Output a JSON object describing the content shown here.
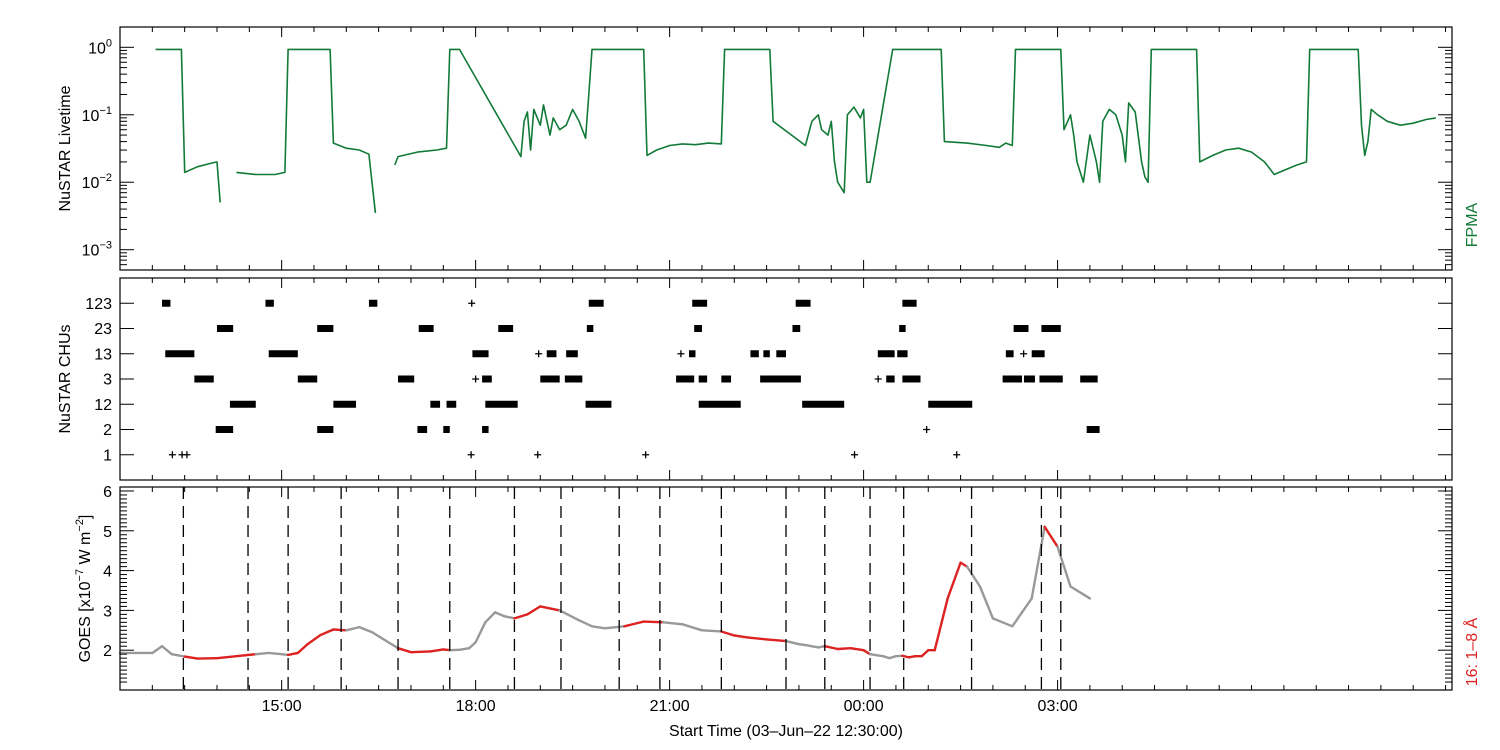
{
  "chart_data": [
    {
      "type": "line",
      "panel": "livetime",
      "ylabel": "NuSTAR Livetime",
      "yscale": "log",
      "ylim": [
        0.0005,
        2.0
      ],
      "y_ticks": [
        {
          "value": 1,
          "label": "10",
          "exp": "0"
        },
        {
          "value": 0.1,
          "label": "10",
          "exp": "−1"
        },
        {
          "value": 0.01,
          "label": "10",
          "exp": "−2"
        },
        {
          "value": 0.001,
          "label": "10",
          "exp": "−3"
        }
      ],
      "right_label": "FPMA",
      "color": "#127a37",
      "segments": [
        [
          [
            13.05,
            0.93
          ],
          [
            13.45,
            0.93
          ],
          [
            13.5,
            0.014
          ],
          [
            13.7,
            0.017
          ],
          [
            13.9,
            0.019
          ],
          [
            14.0,
            0.02
          ],
          [
            14.05,
            0.005
          ]
        ],
        [
          [
            14.3,
            0.014
          ],
          [
            14.6,
            0.013
          ],
          [
            14.9,
            0.013
          ],
          [
            15.05,
            0.014
          ],
          [
            15.1,
            0.93
          ],
          [
            15.75,
            0.93
          ],
          [
            15.8,
            0.038
          ],
          [
            16.0,
            0.032
          ],
          [
            16.2,
            0.03
          ],
          [
            16.35,
            0.026
          ],
          [
            16.45,
            0.0035
          ]
        ],
        [
          [
            16.75,
            0.018
          ],
          [
            16.8,
            0.024
          ],
          [
            17.1,
            0.028
          ],
          [
            17.4,
            0.03
          ],
          [
            17.55,
            0.032
          ],
          [
            17.6,
            0.93
          ],
          [
            17.75,
            0.93
          ],
          [
            18.7,
            0.024
          ],
          [
            18.75,
            0.08
          ],
          [
            18.8,
            0.11
          ],
          [
            18.85,
            0.03
          ],
          [
            18.9,
            0.12
          ],
          [
            19.0,
            0.07
          ],
          [
            19.05,
            0.14
          ],
          [
            19.15,
            0.05
          ],
          [
            19.2,
            0.09
          ],
          [
            19.3,
            0.06
          ],
          [
            19.4,
            0.07
          ],
          [
            19.5,
            0.12
          ],
          [
            19.6,
            0.08
          ],
          [
            19.7,
            0.045
          ],
          [
            19.75,
            0.2
          ],
          [
            19.8,
            0.93
          ],
          [
            20.6,
            0.93
          ],
          [
            20.65,
            0.025
          ],
          [
            20.8,
            0.03
          ],
          [
            21.0,
            0.035
          ],
          [
            21.2,
            0.037
          ],
          [
            21.4,
            0.036
          ],
          [
            21.6,
            0.038
          ],
          [
            21.8,
            0.037
          ],
          [
            21.85,
            0.93
          ],
          [
            22.55,
            0.93
          ],
          [
            22.6,
            0.08
          ],
          [
            23.1,
            0.035
          ],
          [
            23.2,
            0.08
          ],
          [
            23.3,
            0.1
          ],
          [
            23.35,
            0.06
          ],
          [
            23.45,
            0.05
          ],
          [
            23.5,
            0.08
          ],
          [
            23.55,
            0.02
          ],
          [
            23.6,
            0.01
          ],
          [
            23.7,
            0.007
          ],
          [
            23.75,
            0.1
          ],
          [
            23.85,
            0.13
          ],
          [
            23.95,
            0.09
          ],
          [
            24.0,
            0.12
          ],
          [
            24.05,
            0.01
          ],
          [
            24.1,
            0.01
          ],
          [
            24.45,
            0.93
          ],
          [
            25.2,
            0.93
          ],
          [
            25.25,
            0.04
          ],
          [
            25.6,
            0.038
          ],
          [
            25.9,
            0.035
          ],
          [
            26.1,
            0.033
          ],
          [
            26.2,
            0.038
          ],
          [
            26.3,
            0.035
          ],
          [
            26.35,
            0.93
          ],
          [
            27.05,
            0.93
          ],
          [
            27.1,
            0.06
          ],
          [
            27.2,
            0.1
          ],
          [
            27.25,
            0.05
          ],
          [
            27.3,
            0.02
          ],
          [
            27.4,
            0.01
          ],
          [
            27.5,
            0.05
          ],
          [
            27.6,
            0.02
          ],
          [
            27.65,
            0.01
          ],
          [
            27.7,
            0.08
          ],
          [
            27.8,
            0.12
          ],
          [
            27.9,
            0.1
          ],
          [
            28.0,
            0.05
          ],
          [
            28.05,
            0.02
          ],
          [
            28.1,
            0.15
          ],
          [
            28.2,
            0.11
          ],
          [
            28.3,
            0.02
          ],
          [
            28.35,
            0.012
          ],
          [
            28.4,
            0.01
          ],
          [
            28.45,
            0.93
          ],
          [
            29.15,
            0.93
          ],
          [
            29.2,
            0.02
          ],
          [
            29.4,
            0.025
          ],
          [
            29.6,
            0.03
          ],
          [
            29.8,
            0.032
          ],
          [
            30.0,
            0.028
          ],
          [
            30.2,
            0.02
          ],
          [
            30.35,
            0.013
          ],
          [
            30.5,
            0.015
          ],
          [
            30.7,
            0.018
          ],
          [
            30.85,
            0.02
          ],
          [
            30.9,
            0.93
          ],
          [
            31.65,
            0.93
          ],
          [
            31.7,
            0.07
          ],
          [
            31.75,
            0.025
          ],
          [
            31.8,
            0.04
          ],
          [
            31.85,
            0.12
          ],
          [
            31.95,
            0.1
          ],
          [
            32.1,
            0.08
          ],
          [
            32.3,
            0.07
          ],
          [
            32.5,
            0.075
          ],
          [
            32.7,
            0.085
          ],
          [
            32.85,
            0.09
          ]
        ]
      ]
    },
    {
      "type": "scatter",
      "panel": "chus",
      "ylabel": "NuSTAR CHUs",
      "categories": [
        "1",
        "2",
        "12",
        "3",
        "13",
        "23",
        "123"
      ],
      "intervals": {
        "123": [
          [
            13.15,
            13.28
          ],
          [
            14.75,
            14.88
          ],
          [
            16.35,
            16.48
          ],
          [
            17.92,
            17.96
          ],
          [
            19.75,
            19.98
          ],
          [
            21.35,
            21.58
          ],
          [
            22.95,
            23.18
          ],
          [
            24.6,
            24.82
          ]
        ],
        "23": [
          [
            14.0,
            14.25
          ],
          [
            15.55,
            15.8
          ],
          [
            17.12,
            17.35
          ],
          [
            18.35,
            18.58
          ],
          [
            19.72,
            19.82
          ],
          [
            21.38,
            21.5
          ],
          [
            22.9,
            23.02
          ],
          [
            24.55,
            24.65
          ],
          [
            26.32,
            26.55
          ],
          [
            26.75,
            27.05
          ]
        ],
        "13": [
          [
            13.2,
            13.65
          ],
          [
            14.8,
            15.25
          ],
          [
            17.95,
            18.2
          ],
          [
            18.95,
            19.0
          ],
          [
            19.1,
            19.25
          ],
          [
            19.4,
            19.58
          ],
          [
            21.15,
            21.2
          ],
          [
            21.3,
            21.4
          ],
          [
            22.25,
            22.38
          ],
          [
            22.45,
            22.55
          ],
          [
            22.65,
            22.8
          ],
          [
            24.22,
            24.48
          ],
          [
            24.52,
            24.68
          ],
          [
            26.2,
            26.32
          ],
          [
            26.45,
            26.5
          ],
          [
            26.6,
            26.8
          ]
        ],
        "3": [
          [
            13.65,
            13.95
          ],
          [
            15.25,
            15.55
          ],
          [
            16.8,
            17.05
          ],
          [
            17.98,
            18.02
          ],
          [
            18.1,
            18.25
          ],
          [
            19.0,
            19.3
          ],
          [
            19.38,
            19.65
          ],
          [
            21.1,
            21.38
          ],
          [
            21.45,
            21.58
          ],
          [
            21.8,
            21.95
          ],
          [
            22.4,
            23.03
          ],
          [
            24.2,
            24.25
          ],
          [
            24.35,
            24.48
          ],
          [
            24.6,
            24.88
          ],
          [
            26.15,
            26.45
          ],
          [
            26.48,
            26.65
          ],
          [
            26.72,
            27.08
          ],
          [
            27.35,
            27.62
          ]
        ],
        "12": [
          [
            14.2,
            14.6
          ],
          [
            15.8,
            16.15
          ],
          [
            17.3,
            17.45
          ],
          [
            17.55,
            17.7
          ],
          [
            18.15,
            18.65
          ],
          [
            19.7,
            20.1
          ],
          [
            21.45,
            22.1
          ],
          [
            23.05,
            23.7
          ],
          [
            25.0,
            25.68
          ]
        ],
        "2": [
          [
            13.98,
            14.25
          ],
          [
            15.55,
            15.8
          ],
          [
            17.1,
            17.25
          ],
          [
            17.5,
            17.6
          ],
          [
            18.1,
            18.2
          ],
          [
            24.95,
            25.0
          ],
          [
            27.45,
            27.65
          ]
        ],
        "1": [
          [
            13.3,
            13.32
          ],
          [
            13.45,
            13.47
          ],
          [
            13.52,
            13.55
          ],
          [
            17.92,
            17.94
          ],
          [
            18.95,
            18.97
          ],
          [
            20.62,
            20.64
          ],
          [
            23.85,
            23.87
          ],
          [
            25.43,
            25.45
          ]
        ]
      }
    },
    {
      "type": "line",
      "panel": "goes",
      "ylabel": "GOES [x10⁻⁷ W m⁻²]",
      "ylabel_parts": {
        "pre": "GOES [x10",
        "exp": "−7",
        "post": " W m",
        "exp2": "−2",
        "end": "]"
      },
      "ylim": [
        1.0,
        6.1
      ],
      "y_ticks": [
        2,
        3,
        4,
        5,
        6
      ],
      "right_label": "16: 1–8 Å",
      "colors": {
        "quiet": "#999999",
        "highlight": "#dd2222"
      },
      "x": [
        12.5,
        13.0,
        13.15,
        13.3,
        13.5,
        13.7,
        14.0,
        14.3,
        14.6,
        14.8,
        15.0,
        15.1,
        15.25,
        15.4,
        15.6,
        15.8,
        16.0,
        16.2,
        16.4,
        16.6,
        16.8,
        17.0,
        17.3,
        17.5,
        17.6,
        17.75,
        17.9,
        18.0,
        18.15,
        18.3,
        18.45,
        18.6,
        18.8,
        19.0,
        19.3,
        19.6,
        19.8,
        20.0,
        20.3,
        20.6,
        20.9,
        21.2,
        21.5,
        21.8,
        22.0,
        22.2,
        22.5,
        22.8,
        23.0,
        23.1,
        23.3,
        23.4,
        23.6,
        23.8,
        24.0,
        24.1,
        24.3,
        24.4,
        24.5,
        24.6,
        24.7,
        24.8,
        24.9,
        25.0,
        25.1,
        25.3,
        25.5,
        25.6,
        25.8,
        26.0,
        26.3,
        26.6,
        26.8,
        27.0,
        27.2,
        27.5
      ],
      "y": [
        1.93,
        1.93,
        2.1,
        1.9,
        1.84,
        1.79,
        1.8,
        1.85,
        1.9,
        1.93,
        1.9,
        1.88,
        1.93,
        2.15,
        2.38,
        2.52,
        2.5,
        2.58,
        2.45,
        2.25,
        2.05,
        1.95,
        1.97,
        2.02,
        2.0,
        2.01,
        2.05,
        2.2,
        2.7,
        2.95,
        2.85,
        2.8,
        2.9,
        3.1,
        3.0,
        2.75,
        2.6,
        2.55,
        2.6,
        2.72,
        2.7,
        2.65,
        2.5,
        2.47,
        2.37,
        2.32,
        2.27,
        2.23,
        2.15,
        2.13,
        2.07,
        2.1,
        2.03,
        2.05,
        2.0,
        1.9,
        1.85,
        1.8,
        1.85,
        1.86,
        1.82,
        1.85,
        1.85,
        2.0,
        2.0,
        3.3,
        4.2,
        4.1,
        3.6,
        2.8,
        2.6,
        3.3,
        5.1,
        4.6,
        3.6,
        3.3
      ]
    }
  ],
  "x_axis": {
    "label": "Start Time (03–Jun–22 12:30:00)",
    "ticks": [
      {
        "value": 15,
        "label": "15:00"
      },
      {
        "value": 18,
        "label": "18:00"
      },
      {
        "value": 21,
        "label": "21:00"
      },
      {
        "value": 24,
        "label": "00:00"
      },
      {
        "value": 27,
        "label": "03:00"
      }
    ]
  },
  "dashed_lines": [
    13.48,
    14.48,
    15.1,
    15.92,
    16.8,
    17.6,
    18.6,
    19.32,
    20.22,
    20.85,
    21.8,
    22.8,
    23.4,
    24.1,
    24.62,
    25.67,
    26.75,
    27.05
  ],
  "highlight_windows": [
    [
      13.48,
      14.48
    ],
    [
      15.1,
      15.92
    ],
    [
      16.8,
      17.6
    ],
    [
      18.6,
      19.32
    ],
    [
      20.22,
      20.85
    ],
    [
      21.8,
      22.8
    ],
    [
      23.4,
      24.1
    ],
    [
      24.62,
      25.67
    ],
    [
      26.75,
      27.05
    ]
  ]
}
